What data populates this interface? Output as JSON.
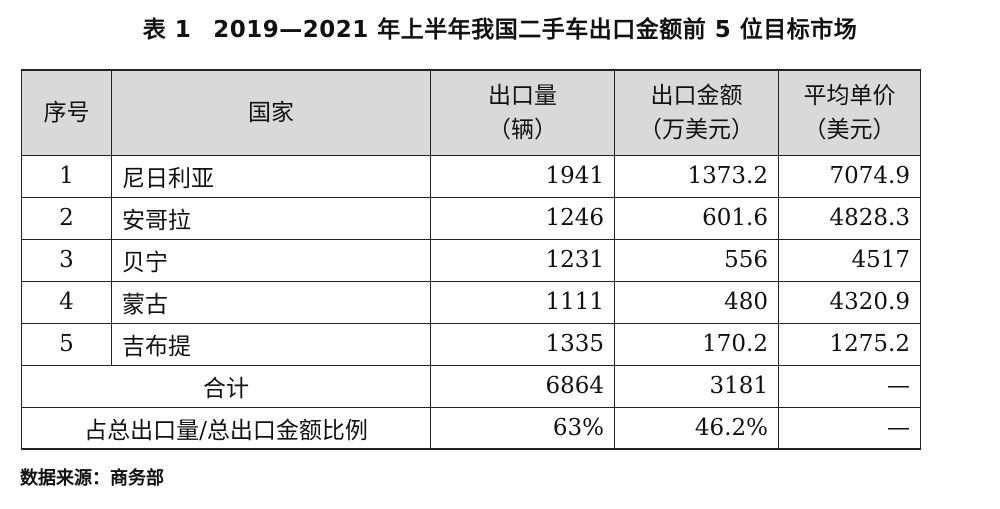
{
  "caption": {
    "label": "表 1",
    "title": "2019—2021 年上半年我国二手车出口金额前 5 位目标市场"
  },
  "table": {
    "headers": {
      "seq": "序号",
      "country": "国家",
      "volume_line1": "出口量",
      "volume_line2": "（辆）",
      "amount_line1": "出口金额",
      "amount_line2": "（万美元）",
      "price_line1": "平均单价",
      "price_line2": "（美元）"
    },
    "rows": [
      {
        "seq": "1",
        "country": "尼日利亚",
        "volume": "1941",
        "amount": "1373.2",
        "price": "7074.9"
      },
      {
        "seq": "2",
        "country": "安哥拉",
        "volume": "1246",
        "amount": "601.6",
        "price": "4828.3"
      },
      {
        "seq": "3",
        "country": "贝宁",
        "volume": "1231",
        "amount": "556",
        "price": "4517"
      },
      {
        "seq": "4",
        "country": "蒙古",
        "volume": "1111",
        "amount": "480",
        "price": "4320.9"
      },
      {
        "seq": "5",
        "country": "吉布提",
        "volume": "1335",
        "amount": "170.2",
        "price": "1275.2"
      }
    ],
    "total": {
      "label": "合计",
      "volume": "6864",
      "amount": "3181",
      "price": "—"
    },
    "share": {
      "label": "占总出口量/总出口金额比例",
      "volume": "63%",
      "amount": "46.2%",
      "price": "—"
    }
  },
  "source": "数据来源：商务部"
}
